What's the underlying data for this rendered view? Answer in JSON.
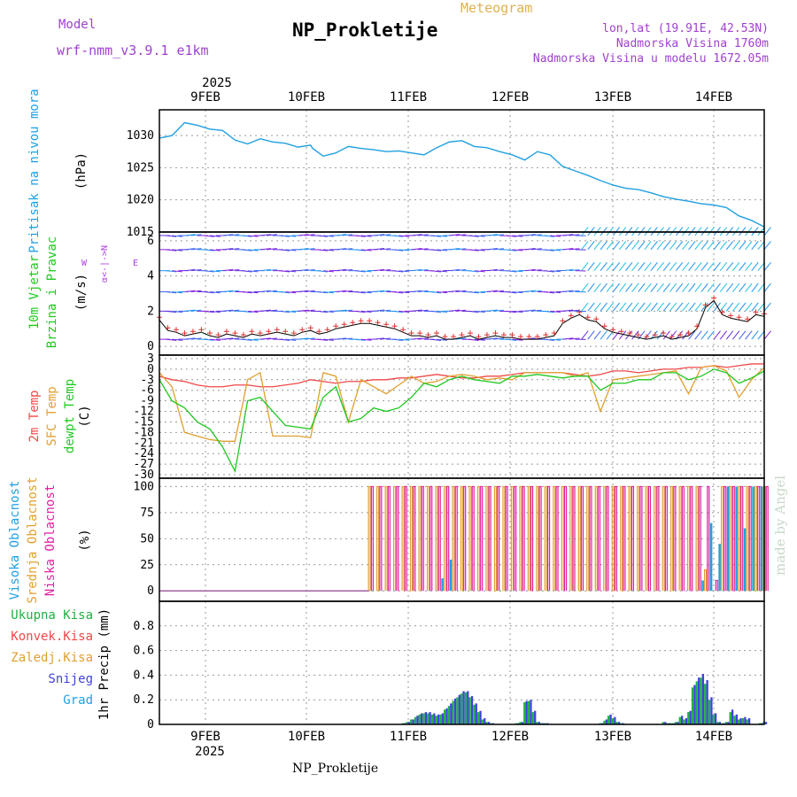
{
  "header": {
    "model_label": "Model",
    "model_name": "wrf-nmm_v3.9.1 e1km",
    "meteogram_label": "Meteogram",
    "station_name": "NP_Prokletije",
    "lonlat": "lon,lat (19.91E, 42.53N)",
    "altitude": "Nadmorska Visina 1760m",
    "model_altitude": "Nadmorska Visina u modelu 1672.05m",
    "footer_station": "NP_Prokletije",
    "watermark": "made by Angel"
  },
  "colors": {
    "pressure": "#20a0e0",
    "temp2m": "#f04848",
    "sfc_temp": "#e0a030",
    "dewpoint": "#20c820",
    "high_cloud": "#20a0e0",
    "mid_cloud": "#e0a030",
    "low_cloud": "#e020a0",
    "total_precip": "#20b040",
    "snow": "#4040e0"
  },
  "chart_data": [
    {
      "type": "line",
      "panel": "pressure",
      "top_year": "2025",
      "days": [
        "9FEB",
        "10FEB",
        "11FEB",
        "12FEB",
        "13FEB",
        "14FEB"
      ],
      "ylabel_line1": "Pritisak na nivou mora",
      "ylabel_units": "(hPa)",
      "ylim": [
        1015,
        1034
      ],
      "yticks": [
        1015,
        1020,
        1025,
        1030
      ],
      "xlim_hours": [
        0,
        144
      ],
      "series": [
        {
          "x_hours": [
            0,
            3,
            6,
            9,
            12,
            15,
            18,
            21,
            24,
            27,
            30,
            33,
            36,
            36.5,
            39,
            42,
            45,
            48,
            51,
            54,
            57,
            60,
            63,
            66,
            69,
            72,
            75,
            78,
            81,
            84,
            87,
            90,
            93,
            96,
            99,
            102,
            105,
            108,
            111,
            114,
            117,
            120,
            123,
            126,
            129,
            132,
            135,
            138,
            141,
            144
          ],
          "values": [
            1029.6,
            1030.0,
            1032.0,
            1031.6,
            1031.0,
            1030.8,
            1029.3,
            1028.7,
            1029.5,
            1029.0,
            1028.8,
            1028.2,
            1028.5,
            1028.0,
            1026.8,
            1027.3,
            1028.3,
            1028.0,
            1027.8,
            1027.5,
            1027.6,
            1027.3,
            1027.0,
            1028.1,
            1029.0,
            1029.2,
            1028.3,
            1028.1,
            1027.5,
            1027.0,
            1026.2,
            1027.5,
            1027.0,
            1025.2,
            1024.5,
            1023.8,
            1023.0,
            1022.3,
            1021.8,
            1021.6,
            1021.1,
            1020.5,
            1020.1,
            1019.8,
            1019.4,
            1019.2,
            1018.8,
            1017.5,
            1016.8,
            1015.8
          ]
        }
      ]
    },
    {
      "type": "line",
      "panel": "wind",
      "ylabel_line1": "10m Vjetar",
      "ylabel_line2": "Brzina i Pravac",
      "ylabel_units": "(m/s)",
      "compass_n": "N",
      "compass_w": "W",
      "compass_e": "E",
      "compass_s": "S",
      "ylim": [
        -0.5,
        6.5
      ],
      "yticks": [
        0,
        2,
        4,
        6
      ],
      "series": [
        {
          "x_hours": [
            0,
            2,
            4,
            6,
            8,
            10,
            12,
            14,
            16,
            18,
            20,
            22,
            24,
            26,
            28,
            30,
            32,
            34,
            36,
            38,
            40,
            42,
            44,
            46,
            48,
            50,
            52,
            54,
            56,
            58,
            60,
            62,
            64,
            66,
            68,
            70,
            72,
            74,
            76,
            78,
            80,
            82,
            84,
            86,
            88,
            90,
            92,
            94,
            96,
            98,
            100,
            102,
            104,
            106,
            108,
            110,
            112,
            114,
            116,
            118,
            120,
            122,
            124,
            126,
            128,
            130,
            132,
            134,
            136,
            138,
            140,
            142,
            144
          ],
          "values": [
            1.5,
            0.9,
            0.8,
            0.6,
            0.7,
            0.8,
            0.6,
            0.5,
            0.7,
            0.6,
            0.5,
            0.7,
            0.6,
            0.7,
            0.8,
            0.7,
            0.6,
            0.8,
            0.9,
            0.7,
            0.8,
            1.0,
            1.1,
            1.2,
            1.3,
            1.3,
            1.2,
            1.1,
            1.0,
            0.8,
            0.6,
            0.6,
            0.5,
            0.6,
            0.4,
            0.4,
            0.5,
            0.6,
            0.4,
            0.5,
            0.6,
            0.5,
            0.5,
            0.4,
            0.4,
            0.4,
            0.5,
            0.6,
            1.3,
            1.6,
            1.8,
            1.5,
            1.4,
            1.0,
            0.8,
            0.7,
            0.6,
            0.5,
            0.4,
            0.5,
            0.6,
            0.4,
            0.5,
            0.6,
            1.0,
            2.2,
            2.6,
            1.8,
            1.6,
            1.5,
            1.4,
            1.8,
            1.7
          ]
        }
      ]
    },
    {
      "type": "line",
      "panel": "temperature",
      "ylabel_line1": "2m Temp",
      "ylabel_line2": "SFC Temp",
      "ylabel_line3": "dewpt Temp",
      "ylabel_units": "(C)",
      "ylim": [
        -31,
        4
      ],
      "yticks": [
        3,
        0,
        -3,
        -6,
        -9,
        -12,
        -15,
        -18,
        -21,
        -24,
        -27,
        -30
      ],
      "x_hours": [
        0,
        3,
        6,
        9,
        12,
        15,
        18,
        21,
        24,
        27,
        30,
        33,
        36,
        39,
        42,
        45,
        48,
        51,
        54,
        57,
        60,
        63,
        66,
        69,
        72,
        75,
        78,
        81,
        84,
        87,
        90,
        93,
        96,
        99,
        102,
        105,
        108,
        111,
        114,
        117,
        120,
        123,
        126,
        129,
        132,
        135,
        138,
        141,
        144
      ],
      "series": [
        {
          "name": "2m Temp",
          "values": [
            -2.0,
            -3.0,
            -3.5,
            -4.5,
            -5.0,
            -5.0,
            -4.5,
            -4.5,
            -5.0,
            -5.0,
            -4.5,
            -4.0,
            -3.0,
            -3.5,
            -4.0,
            -3.5,
            -3.5,
            -3.0,
            -3.0,
            -2.5,
            -2.5,
            -2.0,
            -1.5,
            -2.0,
            -2.5,
            -2.5,
            -2.0,
            -2.0,
            -1.5,
            -1.0,
            -1.0,
            -1.0,
            -1.0,
            -1.5,
            -2.0,
            -1.5,
            -0.5,
            -0.5,
            -1.0,
            -0.5,
            0.0,
            0.0,
            0.5,
            0.5,
            1.0,
            0.5,
            1.0,
            1.5,
            1.5
          ]
        },
        {
          "name": "SFC Temp",
          "values": [
            -1.0,
            -5.0,
            -18.0,
            -19.0,
            -20.0,
            -20.5,
            -20.5,
            -3.0,
            -1.0,
            -19.0,
            -19.0,
            -19.0,
            -19.5,
            -1.0,
            -2.0,
            -15.0,
            -3.0,
            -5.0,
            -7.0,
            -4.5,
            -2.0,
            -4.0,
            -3.5,
            -2.0,
            -1.5,
            -2.0,
            -3.0,
            -2.5,
            -3.0,
            -1.0,
            -1.0,
            -1.0,
            -1.0,
            -2.0,
            -1.0,
            -12.0,
            -3.0,
            -2.5,
            -2.0,
            -1.5,
            -1.0,
            -0.5,
            -7.0,
            0.5,
            1.0,
            -0.5,
            -8.0,
            -3.0,
            0.5
          ]
        },
        {
          "name": "dewpt Temp",
          "values": [
            -3.0,
            -9.0,
            -11.0,
            -15.0,
            -17.0,
            -22.0,
            -29.0,
            -9.0,
            -8.0,
            -12.0,
            -16.0,
            -16.5,
            -17.0,
            -8.0,
            -5.0,
            -15.0,
            -14.0,
            -11.0,
            -12.0,
            -11.0,
            -8.0,
            -4.0,
            -5.0,
            -3.0,
            -2.0,
            -3.0,
            -3.5,
            -4.0,
            -2.0,
            -2.0,
            -1.5,
            -2.0,
            -2.5,
            -2.0,
            -2.0,
            -6.0,
            -4.0,
            -4.0,
            -3.0,
            -3.0,
            -1.0,
            -1.0,
            -3.0,
            -2.0,
            0.0,
            -1.0,
            -4.0,
            -2.5,
            -0.5
          ]
        }
      ]
    },
    {
      "type": "bar",
      "panel": "cloud",
      "ylabel_line1": "Visoka Oblacnost",
      "ylabel_line2": "Srednja Oblacnost",
      "ylabel_line3": "Niska Oblacnost",
      "ylabel_units": "(%)",
      "ylim": [
        -10,
        108
      ],
      "yticks": [
        0,
        25,
        50,
        75,
        100
      ],
      "note": "hours 0-50 all layers 0; from ~hour 50 onward middle and low layers alternate near 100",
      "x_hours": [
        50,
        52,
        54,
        56,
        58,
        60,
        62,
        64,
        66,
        68,
        70,
        72,
        74,
        76,
        78,
        80,
        82,
        84,
        86,
        88,
        90,
        92,
        94,
        96,
        98,
        100,
        102,
        104,
        106,
        108,
        110,
        112,
        114,
        116,
        118,
        120,
        122,
        124,
        126,
        128,
        130,
        132,
        134,
        136,
        138,
        140,
        142,
        144
      ],
      "series": [
        {
          "name": "Visoka Oblacnost",
          "values": [
            0,
            0,
            0,
            0,
            0,
            0,
            0,
            0,
            0,
            12,
            30,
            0,
            0,
            0,
            0,
            0,
            0,
            0,
            0,
            0,
            0,
            0,
            0,
            0,
            0,
            0,
            0,
            0,
            0,
            0,
            0,
            0,
            0,
            0,
            0,
            0,
            0,
            0,
            0,
            0,
            10,
            65,
            45,
            100,
            100,
            60,
            100,
            100
          ]
        },
        {
          "name": "Srednja Oblacnost",
          "values": [
            100,
            100,
            100,
            100,
            100,
            100,
            100,
            100,
            100,
            100,
            100,
            100,
            100,
            100,
            100,
            100,
            100,
            100,
            100,
            100,
            100,
            100,
            100,
            100,
            100,
            100,
            100,
            100,
            100,
            100,
            100,
            100,
            100,
            100,
            100,
            100,
            100,
            100,
            100,
            100,
            20,
            0,
            100,
            100,
            100,
            100,
            100,
            100
          ]
        },
        {
          "name": "Niska Oblacnost",
          "values": [
            100,
            100,
            100,
            100,
            100,
            100,
            100,
            100,
            100,
            100,
            100,
            100,
            100,
            100,
            100,
            100,
            100,
            100,
            100,
            100,
            100,
            100,
            100,
            100,
            100,
            100,
            100,
            100,
            100,
            100,
            100,
            100,
            100,
            100,
            100,
            100,
            100,
            100,
            100,
            100,
            100,
            10,
            100,
            100,
            100,
            100,
            100,
            100
          ]
        }
      ]
    },
    {
      "type": "bar",
      "panel": "precip",
      "legend_total": "Ukupna Kisa",
      "legend_convective": "Konvek.Kisa",
      "legend_freezing": "Zaledj.Kisa",
      "legend_snow": "Snijeg",
      "legend_hail": "Grad",
      "ylabel": "1hr Precip (mm)",
      "ylim": [
        0,
        1.0
      ],
      "yticks": [
        0,
        0.2,
        0.4,
        0.6,
        0.8
      ],
      "bottom_year": "2025",
      "x_hours": [
        58,
        59,
        60,
        61,
        62,
        63,
        64,
        65,
        66,
        67,
        68,
        69,
        70,
        71,
        72,
        73,
        74,
        75,
        76,
        77,
        78,
        79,
        80,
        81,
        82,
        83,
        84,
        85,
        86,
        87,
        88,
        89,
        90,
        91,
        92,
        93,
        94,
        95,
        96,
        97,
        98,
        99,
        100,
        101,
        102,
        103,
        104,
        105,
        106,
        107,
        108,
        109,
        110,
        111,
        112,
        113,
        114,
        115,
        116,
        117,
        118,
        119,
        120,
        121,
        122,
        123,
        124,
        125,
        126,
        127,
        128,
        129,
        130,
        131,
        132,
        133,
        134,
        135,
        136,
        137,
        138,
        139,
        140,
        141,
        142,
        143,
        144
      ],
      "series": [
        {
          "name": "Ukupna Kisa",
          "values": [
            0.01,
            0.02,
            0.04,
            0.06,
            0.08,
            0.09,
            0.09,
            0.08,
            0.07,
            0.08,
            0.12,
            0.15,
            0.19,
            0.22,
            0.25,
            0.26,
            0.22,
            0.16,
            0.1,
            0.04,
            0.02,
            0.01,
            0.0,
            0.0,
            0.0,
            0.0,
            0.0,
            0.01,
            0.02,
            0.18,
            0.19,
            0.1,
            0.02,
            0.01,
            0.01,
            0.0,
            0.0,
            0.0,
            0.0,
            0.0,
            0.0,
            0.0,
            0.0,
            0.0,
            0.0,
            0.0,
            0.0,
            0.01,
            0.03,
            0.07,
            0.05,
            0.02,
            0.01,
            0.0,
            0.0,
            0.0,
            0.0,
            0.0,
            0.0,
            0.0,
            0.0,
            0.0,
            0.02,
            0.01,
            0.01,
            0.02,
            0.06,
            0.04,
            0.1,
            0.3,
            0.35,
            0.38,
            0.33,
            0.2,
            0.08,
            0.02,
            0.01,
            0.02,
            0.1,
            0.07,
            0.04,
            0.05,
            0.04,
            0.0,
            0.0,
            0.01,
            0.02
          ]
        },
        {
          "name": "Snijeg",
          "values": [
            0.01,
            0.02,
            0.04,
            0.07,
            0.09,
            0.1,
            0.1,
            0.09,
            0.08,
            0.09,
            0.13,
            0.17,
            0.21,
            0.24,
            0.27,
            0.27,
            0.23,
            0.17,
            0.11,
            0.05,
            0.02,
            0.01,
            0.0,
            0.0,
            0.0,
            0.0,
            0.0,
            0.01,
            0.02,
            0.19,
            0.2,
            0.11,
            0.02,
            0.01,
            0.01,
            0.0,
            0.0,
            0.0,
            0.0,
            0.0,
            0.0,
            0.0,
            0.0,
            0.0,
            0.0,
            0.0,
            0.0,
            0.01,
            0.04,
            0.08,
            0.06,
            0.02,
            0.01,
            0.0,
            0.0,
            0.0,
            0.0,
            0.0,
            0.0,
            0.0,
            0.0,
            0.0,
            0.02,
            0.01,
            0.01,
            0.02,
            0.07,
            0.05,
            0.11,
            0.32,
            0.38,
            0.41,
            0.36,
            0.22,
            0.09,
            0.02,
            0.01,
            0.02,
            0.12,
            0.08,
            0.05,
            0.06,
            0.05,
            0.0,
            0.0,
            0.01,
            0.02
          ]
        }
      ]
    }
  ]
}
